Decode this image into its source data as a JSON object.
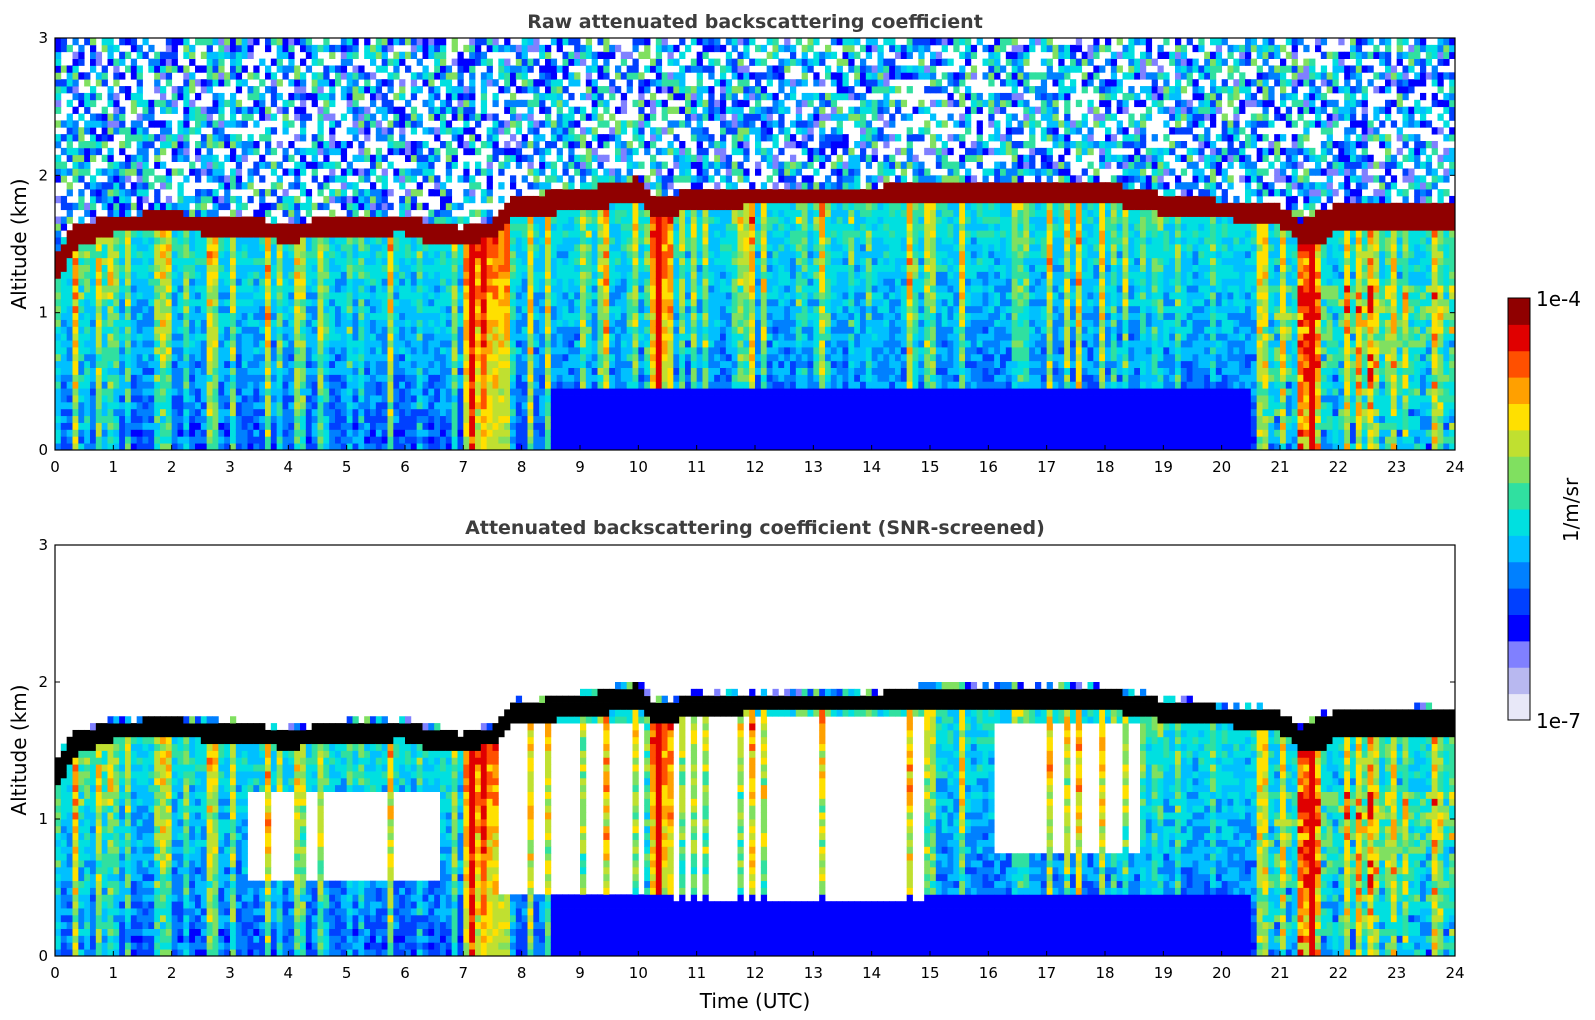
{
  "chart_data": [
    {
      "type": "heatmap",
      "title": "Raw attenuated backscattering coefficient",
      "xlabel": "",
      "ylabel": "Altitude (km)",
      "xlim": [
        0,
        24
      ],
      "ylim": [
        0,
        3
      ],
      "xticks": [
        "0",
        "1",
        "2",
        "3",
        "4",
        "5",
        "6",
        "7",
        "8",
        "9",
        "10",
        "11",
        "12",
        "13",
        "14",
        "15",
        "16",
        "17",
        "18",
        "19",
        "20",
        "21",
        "22",
        "23",
        "24"
      ],
      "yticks": [
        "0",
        "1",
        "2",
        "3"
      ],
      "screened": false,
      "cloud_layer": {
        "time": [
          0,
          0.3,
          1,
          2,
          3,
          4,
          5,
          6,
          6.5,
          7,
          7.5,
          7.8,
          8.5,
          9,
          10,
          10.3,
          11,
          12,
          13,
          14,
          15,
          16,
          17,
          18,
          19,
          20,
          21,
          21.3,
          21.7,
          22,
          23,
          23.4,
          24
        ],
        "base_km": [
          1.2,
          1.45,
          1.58,
          1.6,
          1.55,
          1.52,
          1.55,
          1.58,
          1.5,
          1.48,
          1.55,
          1.7,
          1.72,
          1.75,
          1.8,
          1.7,
          1.75,
          1.78,
          1.78,
          1.78,
          1.8,
          1.78,
          1.8,
          1.8,
          1.72,
          1.68,
          1.65,
          1.5,
          1.5,
          1.6,
          1.6,
          1.6,
          1.6
        ],
        "top_km": [
          1.4,
          1.62,
          1.72,
          1.73,
          1.7,
          1.66,
          1.7,
          1.72,
          1.65,
          1.62,
          1.68,
          1.85,
          1.88,
          1.9,
          1.98,
          1.85,
          1.9,
          1.92,
          1.92,
          1.92,
          1.95,
          1.95,
          1.95,
          1.95,
          1.87,
          1.82,
          1.8,
          1.65,
          1.75,
          1.78,
          1.78,
          1.8,
          1.78
        ]
      }
    },
    {
      "type": "heatmap",
      "title": "Attenuated backscattering coefficient (SNR-screened)",
      "xlabel": "Time (UTC)",
      "ylabel": "Altitude (km)",
      "xlim": [
        0,
        24
      ],
      "ylim": [
        0,
        3
      ],
      "xticks": [
        "0",
        "1",
        "2",
        "3",
        "4",
        "5",
        "6",
        "7",
        "8",
        "9",
        "10",
        "11",
        "12",
        "13",
        "14",
        "15",
        "16",
        "17",
        "18",
        "19",
        "20",
        "21",
        "22",
        "23",
        "24"
      ],
      "yticks": [
        "0",
        "1",
        "2",
        "3"
      ],
      "screened": true,
      "screened_regions": [
        {
          "t0": 3.3,
          "t1": 6.6,
          "z0": 0.55,
          "z1": 1.2
        },
        {
          "t0": 7.6,
          "t1": 10.1,
          "z0": 0.45,
          "z1": 1.7
        },
        {
          "t0": 10.6,
          "t1": 15.1,
          "z0": 0.4,
          "z1": 1.75
        },
        {
          "t0": 16.1,
          "t1": 18.6,
          "z0": 0.75,
          "z1": 1.72
        }
      ]
    }
  ],
  "colorbar": {
    "label": "1/m/sr",
    "max_label": "1e-4",
    "min_label": "1e-7",
    "colors": [
      "#e8e8f8",
      "#b8b8f0",
      "#8080ff",
      "#0000ff",
      "#0040ff",
      "#0080ff",
      "#00c0ff",
      "#00e0e0",
      "#30e0a0",
      "#80e060",
      "#c0e030",
      "#ffe000",
      "#ffa000",
      "#ff5000",
      "#e00000",
      "#900000"
    ]
  }
}
